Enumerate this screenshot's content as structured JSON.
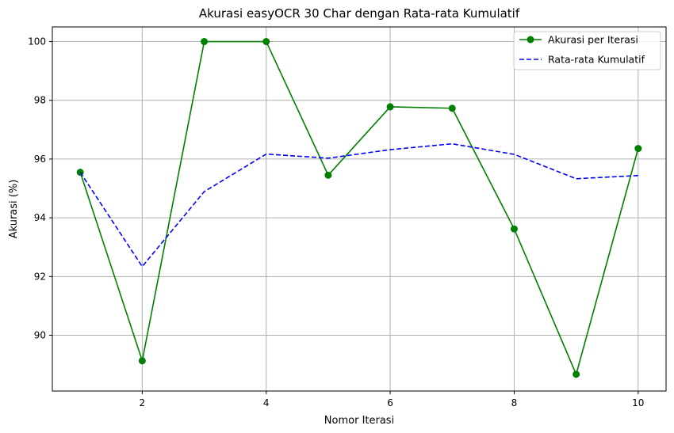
{
  "chart_data": {
    "type": "line",
    "title": "Akurasi easyOCR 30 Char dengan Rata-rata Kumulatif",
    "xlabel": "Nomor Iterasi",
    "ylabel": "Akurasi (%)",
    "x": [
      1,
      2,
      3,
      4,
      5,
      6,
      7,
      8,
      9,
      10
    ],
    "xlim": [
      0.55,
      10.45
    ],
    "ylim": [
      88.1,
      100.5
    ],
    "xticks": [
      2,
      4,
      6,
      8,
      10
    ],
    "yticks": [
      90,
      92,
      94,
      96,
      98,
      100
    ],
    "grid": true,
    "legend_position": "top-right",
    "series": [
      {
        "name": "Akurasi per Iterasi",
        "color": "#008000",
        "line_style": "solid",
        "marker": "circle",
        "values": [
          95.55,
          89.13,
          100.0,
          100.0,
          95.45,
          97.78,
          97.73,
          93.62,
          88.67,
          96.36
        ]
      },
      {
        "name": "Rata-rata Kumulatif",
        "color": "#0000ff",
        "line_style": "dashed",
        "marker": "none",
        "values": [
          95.55,
          92.34,
          94.89,
          96.17,
          96.03,
          96.32,
          96.52,
          96.16,
          95.33,
          95.44
        ]
      }
    ]
  }
}
